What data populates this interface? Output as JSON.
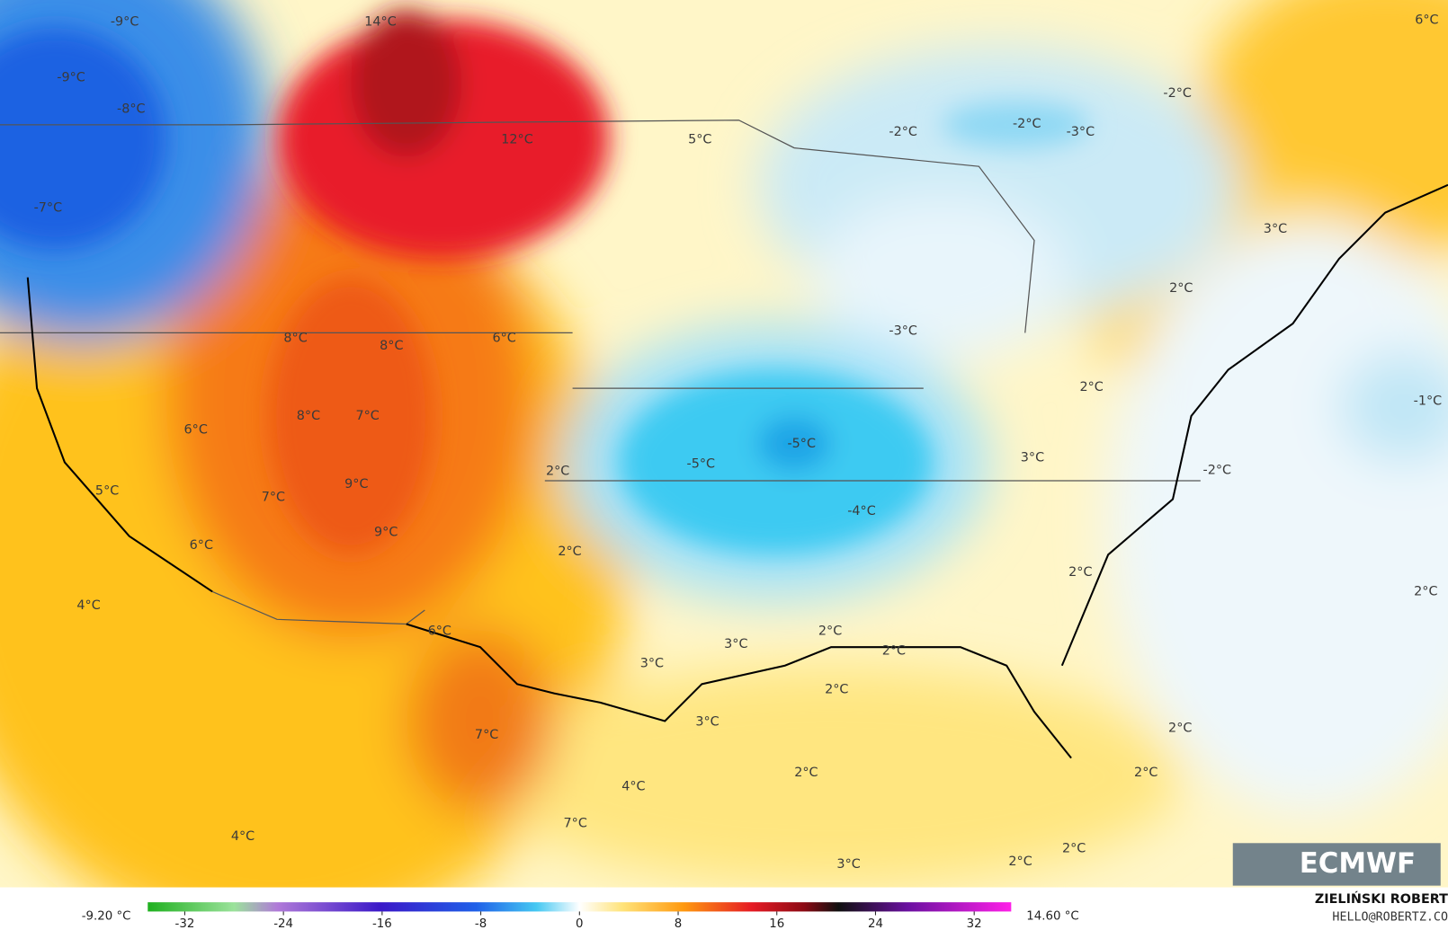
{
  "map": {
    "labels": [
      "-9°C",
      "-9°C",
      "-8°C",
      "-7°C",
      "14°C",
      "12°C",
      "5°C",
      "-2°C",
      "-2°C",
      "-3°C",
      "-2°C",
      "6°C",
      "3°C",
      "2°C",
      "8°C",
      "8°C",
      "6°C",
      "-3°C",
      "2°C",
      "-1°C",
      "6°C",
      "8°C",
      "7°C",
      "-5°C",
      "-5°C",
      "3°C",
      "-2°C",
      "5°C",
      "7°C",
      "9°C",
      "2°C",
      "-4°C",
      "9°C",
      "6°C",
      "2°C",
      "2°C",
      "2°C",
      "4°C",
      "6°C",
      "2°C",
      "3°C",
      "2°C",
      "3°C",
      "2°C",
      "3°C",
      "7°C",
      "2°C",
      "2°C",
      "2°C",
      "4°C",
      "7°C",
      "4°C",
      "3°C",
      "2°C",
      "2°C"
    ]
  },
  "colorbar": {
    "min_label": "-9.20 °C",
    "max_label": "14.60 °C",
    "range": [
      -35,
      35
    ],
    "ticks": [
      -32,
      -24,
      -16,
      -8,
      0,
      8,
      16,
      24,
      32
    ]
  },
  "credits": {
    "author": "ZIELIŃSKI ROBERT",
    "contact": "HELLO@ROBERTZ.CO",
    "logo": "ECMWF"
  }
}
